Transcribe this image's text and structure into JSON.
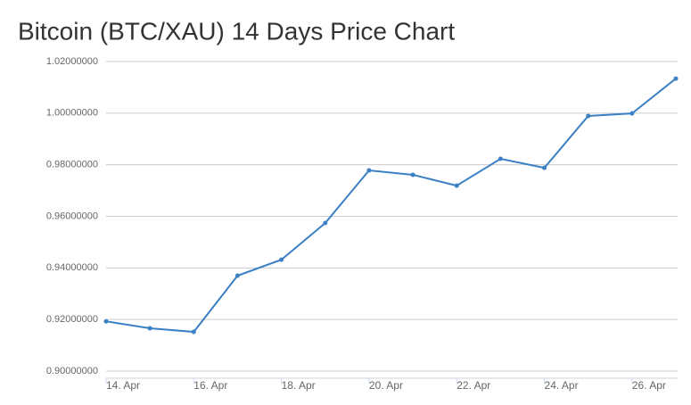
{
  "chart_data": {
    "type": "line",
    "title": "Bitcoin (BTC/XAU) 14 Days Price Chart",
    "categories": [
      "14. Apr",
      null,
      "16. Apr",
      null,
      "18. Apr",
      null,
      "20. Apr",
      null,
      "22. Apr",
      null,
      "24. Apr",
      null,
      "26. Apr",
      null
    ],
    "series": [
      {
        "name": "BTC/XAU",
        "color": "#3b7fc4",
        "values": [
          0.9193,
          0.9166,
          0.9152,
          0.937,
          0.9432,
          0.9574,
          0.9778,
          0.9761,
          0.9719,
          0.9823,
          0.9788,
          0.9989,
          0.9999,
          1.0134
        ]
      }
    ],
    "ylim": [
      0.9,
      1.02
    ],
    "yticks": [
      {
        "value": 0.9,
        "label": "0.90000000"
      },
      {
        "value": 0.92,
        "label": "0.92000000"
      },
      {
        "value": 0.94,
        "label": "0.94000000"
      },
      {
        "value": 0.96,
        "label": "0.96000000"
      },
      {
        "value": 0.98,
        "label": "0.98000000"
      },
      {
        "value": 1.0,
        "label": "1.00000000"
      },
      {
        "value": 1.02,
        "label": "1.02000000"
      }
    ],
    "grid": true
  }
}
